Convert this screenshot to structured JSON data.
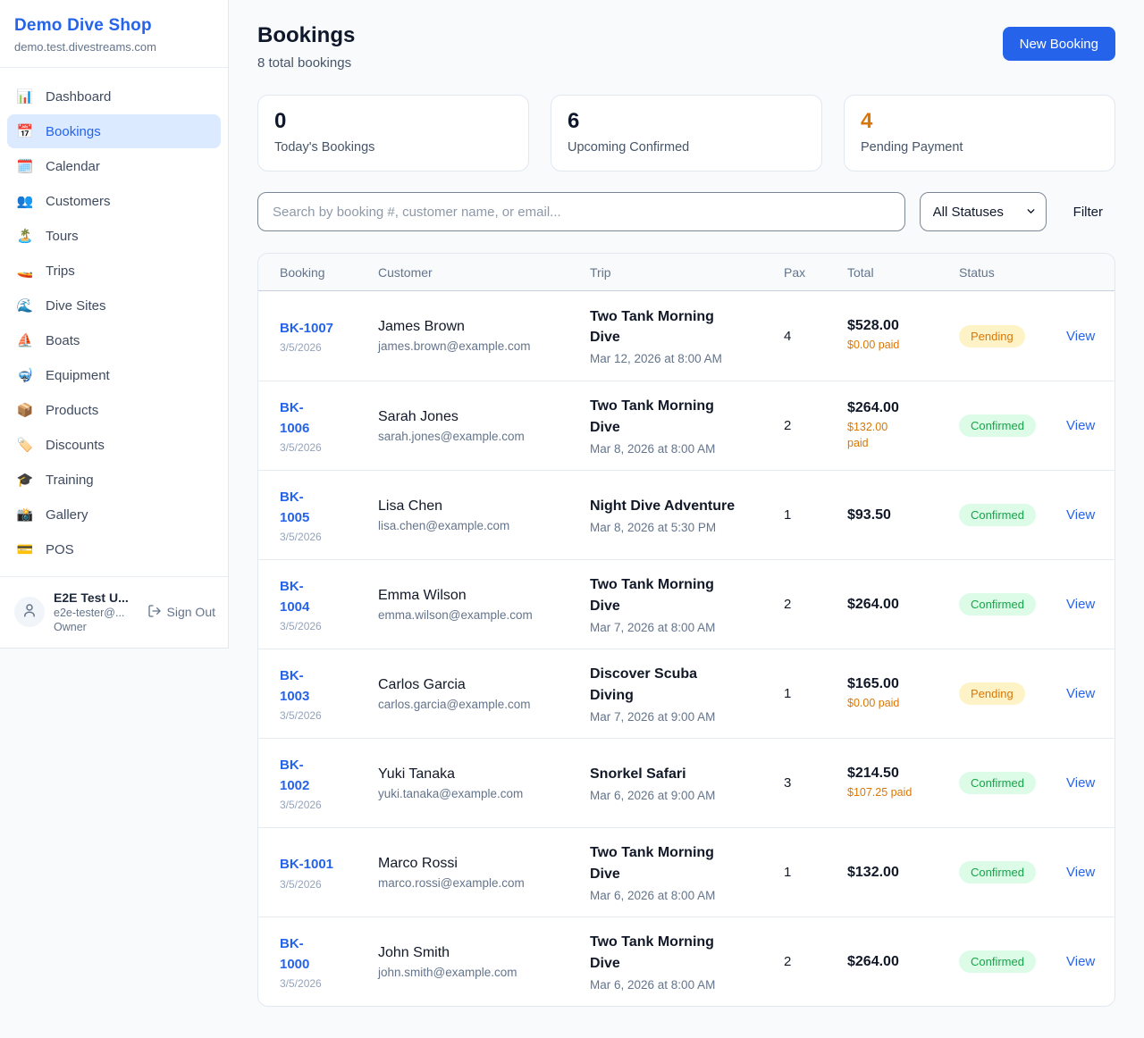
{
  "colors": {
    "accent": "#2563eb",
    "pending_text": "#d97706",
    "pending_bg": "#fef3c7",
    "confirmed_text": "#16a34a",
    "confirmed_bg": "#dcfce7",
    "warning_orange": "#d97706"
  },
  "sidebar": {
    "shop_name": "Demo Dive Shop",
    "shop_domain": "demo.test.divestreams.com",
    "items": [
      {
        "icon": "📊",
        "label": "Dashboard",
        "active": false
      },
      {
        "icon": "📅",
        "label": "Bookings",
        "active": true
      },
      {
        "icon": "🗓️",
        "label": "Calendar",
        "active": false
      },
      {
        "icon": "👥",
        "label": "Customers",
        "active": false
      },
      {
        "icon": "🏝️",
        "label": "Tours",
        "active": false
      },
      {
        "icon": "🚤",
        "label": "Trips",
        "active": false
      },
      {
        "icon": "🌊",
        "label": "Dive Sites",
        "active": false
      },
      {
        "icon": "⛵",
        "label": "Boats",
        "active": false
      },
      {
        "icon": "🤿",
        "label": "Equipment",
        "active": false
      },
      {
        "icon": "📦",
        "label": "Products",
        "active": false
      },
      {
        "icon": "🏷️",
        "label": "Discounts",
        "active": false
      },
      {
        "icon": "🎓",
        "label": "Training",
        "active": false
      },
      {
        "icon": "📸",
        "label": "Gallery",
        "active": false
      },
      {
        "icon": "💳",
        "label": "POS",
        "active": false
      }
    ],
    "user": {
      "name": "E2E Test U...",
      "email": "e2e-tester@...",
      "role": "Owner",
      "sign_out_label": "Sign Out"
    }
  },
  "header": {
    "title": "Bookings",
    "subtitle": "8 total bookings",
    "new_booking_label": "New Booking"
  },
  "stats": [
    {
      "value": "0",
      "label": "Today's Bookings",
      "value_color": "#0f172a"
    },
    {
      "value": "6",
      "label": "Upcoming Confirmed",
      "value_color": "#0f172a"
    },
    {
      "value": "4",
      "label": "Pending Payment",
      "value_color": "#d97706"
    }
  ],
  "filters": {
    "search_placeholder": "Search by booking #, customer name, or email...",
    "status_selected": "All Statuses",
    "filter_label": "Filter"
  },
  "table": {
    "columns": [
      "Booking",
      "Customer",
      "Trip",
      "Pax",
      "Total",
      "Status",
      ""
    ],
    "rows": [
      {
        "id": "BK-1007",
        "id_wrap": false,
        "date": "3/5/2026",
        "customer": "James Brown",
        "email": "james.brown@example.com",
        "trip": "Two Tank Morning Dive",
        "trip_time": "Mar 12, 2026 at 8:00 AM",
        "pax": "4",
        "total": "$528.00",
        "paid": "$0.00 paid",
        "paid_wrap": false,
        "status": "Pending",
        "action": "View"
      },
      {
        "id": "BK-1006",
        "id_wrap": true,
        "date": "3/5/2026",
        "customer": "Sarah Jones",
        "email": "sarah.jones@example.com",
        "trip": "Two Tank Morning Dive",
        "trip_time": "Mar 8, 2026 at 8:00 AM",
        "pax": "2",
        "total": "$264.00",
        "paid": "$132.00 paid",
        "paid_wrap": true,
        "status": "Confirmed",
        "action": "View"
      },
      {
        "id": "BK-1005",
        "id_wrap": true,
        "date": "3/5/2026",
        "customer": "Lisa Chen",
        "email": "lisa.chen@example.com",
        "trip": "Night Dive Adventure",
        "trip_time": "Mar 8, 2026 at 5:30 PM",
        "pax": "1",
        "total": "$93.50",
        "paid": "",
        "paid_wrap": false,
        "status": "Confirmed",
        "action": "View"
      },
      {
        "id": "BK-1004",
        "id_wrap": true,
        "date": "3/5/2026",
        "customer": "Emma Wilson",
        "email": "emma.wilson@example.com",
        "trip": "Two Tank Morning Dive",
        "trip_time": "Mar 7, 2026 at 8:00 AM",
        "pax": "2",
        "total": "$264.00",
        "paid": "",
        "paid_wrap": false,
        "status": "Confirmed",
        "action": "View"
      },
      {
        "id": "BK-1003",
        "id_wrap": true,
        "date": "3/5/2026",
        "customer": "Carlos Garcia",
        "email": "carlos.garcia@example.com",
        "trip": "Discover Scuba Diving",
        "trip_time": "Mar 7, 2026 at 9:00 AM",
        "pax": "1",
        "total": "$165.00",
        "paid": "$0.00 paid",
        "paid_wrap": false,
        "status": "Pending",
        "action": "View"
      },
      {
        "id": "BK-1002",
        "id_wrap": true,
        "date": "3/5/2026",
        "customer": "Yuki Tanaka",
        "email": "yuki.tanaka@example.com",
        "trip": "Snorkel Safari",
        "trip_time": "Mar 6, 2026 at 9:00 AM",
        "pax": "3",
        "total": "$214.50",
        "paid": "$107.25 paid",
        "paid_wrap": false,
        "status": "Confirmed",
        "action": "View"
      },
      {
        "id": "BK-1001",
        "id_wrap": false,
        "date": "3/5/2026",
        "customer": "Marco Rossi",
        "email": "marco.rossi@example.com",
        "trip": "Two Tank Morning Dive",
        "trip_time": "Mar 6, 2026 at 8:00 AM",
        "pax": "1",
        "total": "$132.00",
        "paid": "",
        "paid_wrap": false,
        "status": "Confirmed",
        "action": "View"
      },
      {
        "id": "BK-1000",
        "id_wrap": true,
        "date": "3/5/2026",
        "customer": "John Smith",
        "email": "john.smith@example.com",
        "trip": "Two Tank Morning Dive",
        "trip_time": "Mar 6, 2026 at 8:00 AM",
        "pax": "2",
        "total": "$264.00",
        "paid": "",
        "paid_wrap": false,
        "status": "Confirmed",
        "action": "View"
      }
    ]
  }
}
